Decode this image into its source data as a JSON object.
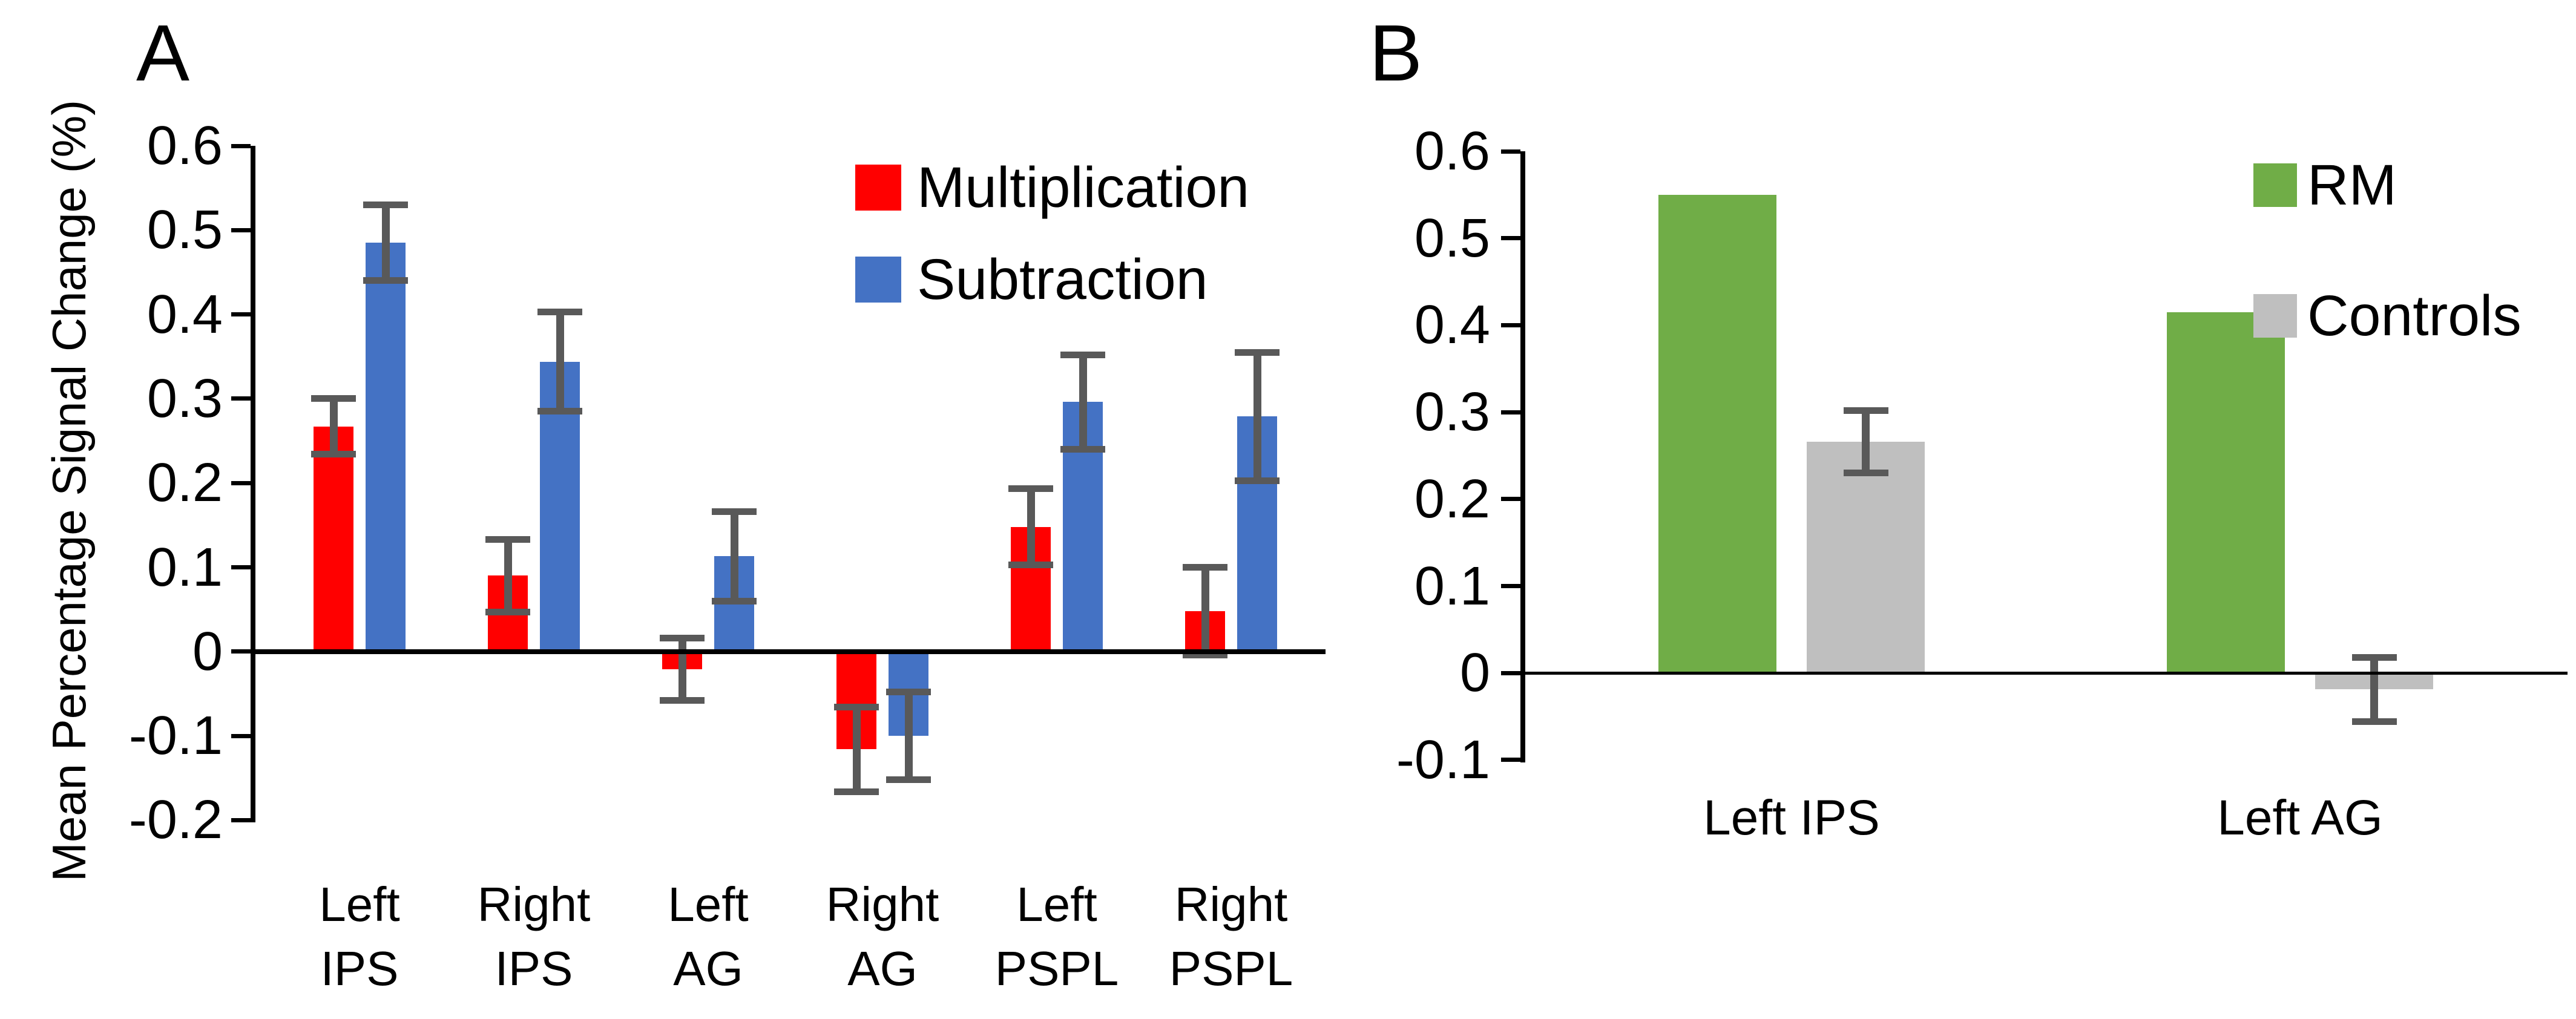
{
  "figure": {
    "y_axis_title": "Mean Percentage Signal Change (%)",
    "background_color": "#FFFFFF",
    "axis_color": "#000000",
    "error_bar_color": "#595959"
  },
  "chart_data": [
    {
      "panel": "A",
      "type": "bar",
      "title": "",
      "xlabel": "",
      "ylabel": "Mean Percentage Signal Change (%)",
      "ylim": [
        -0.2,
        0.6
      ],
      "ytick_step": 0.1,
      "yticks": [
        "0.6",
        "0.5",
        "0.4",
        "0.3",
        "0.2",
        "0.1",
        "0",
        "-0.1",
        "-0.2"
      ],
      "grid": false,
      "legend_position": "top-right",
      "categories": [
        "Left IPS",
        "Right IPS",
        "Left AG",
        "Right AG",
        "Left PSPL",
        "Right PSPL"
      ],
      "categories_lines": [
        [
          "Left",
          "IPS"
        ],
        [
          "Right",
          "IPS"
        ],
        [
          "Left",
          "AG"
        ],
        [
          "Right",
          "AG"
        ],
        [
          "Left",
          "PSPL"
        ],
        [
          "Right",
          "PSPL"
        ]
      ],
      "series": [
        {
          "name": "Multiplication",
          "color": "#FF0000",
          "values": [
            0.267,
            0.09,
            -0.021,
            -0.116,
            0.148,
            0.048
          ],
          "errors": [
            0.033,
            0.043,
            0.037,
            0.05,
            0.045,
            0.052
          ]
        },
        {
          "name": "Subtraction",
          "color": "#4472C4",
          "values": [
            0.485,
            0.344,
            0.113,
            -0.1,
            0.296,
            0.279
          ],
          "errors": [
            0.045,
            0.059,
            0.053,
            0.052,
            0.056,
            0.076
          ]
        }
      ]
    },
    {
      "panel": "B",
      "type": "bar",
      "title": "",
      "xlabel": "",
      "ylabel": "",
      "ylim": [
        -0.1,
        0.6
      ],
      "ytick_step": 0.1,
      "yticks": [
        "0.6",
        "0.5",
        "0.4",
        "0.3",
        "0.2",
        "0.1",
        "0",
        "-0.1"
      ],
      "grid": false,
      "legend_position": "top-right",
      "categories": [
        "Left IPS",
        "Left AG"
      ],
      "categories_lines": [
        [
          "Left IPS"
        ],
        [
          "Left AG"
        ]
      ],
      "series": [
        {
          "name": "RM",
          "color": "#70AD47",
          "values": [
            0.55,
            0.415
          ],
          "errors": [
            null,
            null
          ]
        },
        {
          "name": "Controls",
          "color": "#BFBFBF",
          "values": [
            0.266,
            -0.019
          ],
          "errors": [
            0.036,
            0.037
          ]
        }
      ]
    }
  ]
}
